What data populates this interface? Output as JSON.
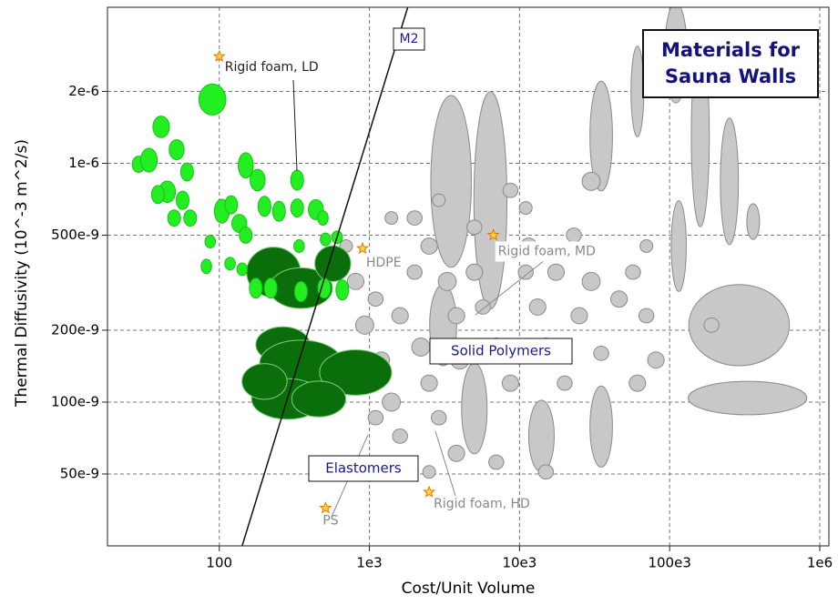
{
  "chart_data": {
    "type": "bubble",
    "title_lines": [
      "Materials for",
      "Sauna Walls"
    ],
    "xlabel": "Cost/Unit Volume",
    "ylabel": "Thermal Diffusivity (10^-3 m^2/s)",
    "xscale": "log",
    "yscale": "log",
    "grid": true,
    "xlim": [
      18,
      1150000
    ],
    "ylim": [
      2.5e-08,
      4.5e-06
    ],
    "xticks": [
      100,
      {
        "value": 1000,
        "label": "1e3"
      },
      {
        "value": 10000,
        "label": "10e3"
      },
      {
        "value": 100000,
        "label": "100e3"
      },
      {
        "value": 1000000,
        "label": "1e6"
      }
    ],
    "yticks": [
      {
        "value": 2e-06,
        "label": "2e-6"
      },
      {
        "value": 1e-06,
        "label": "1e-6"
      },
      {
        "value": 5e-07,
        "label": "500e-9"
      },
      {
        "value": 2e-07,
        "label": "200e-9"
      },
      {
        "value": 1e-07,
        "label": "100e-9"
      },
      {
        "value": 5e-08,
        "label": "50e-9"
      }
    ],
    "series": [
      {
        "color": "#c8c8c8",
        "x": [
          3500,
          6400,
          35000,
          110000,
          160000,
          250000,
          290000,
          330000,
          115000,
          360000,
          61000,
          35000,
          14000,
          5000,
          3100,
          810,
          1100,
          930,
          1200,
          1400,
          1100,
          1600,
          2000,
          2200,
          2500,
          2900,
          2000,
          2500,
          3300,
          3800,
          4000,
          5000,
          5700,
          7000,
          8700,
          11000,
          13200,
          15000,
          17500,
          20000,
          25000,
          30000,
          35000,
          46000,
          57000,
          61000,
          70000,
          81000,
          1400,
          2900,
          8700,
          11000,
          30000,
          70000,
          1600,
          3800,
          7000,
          15000,
          700,
          2500,
          11500,
          5000,
          23000,
          1100,
          190000
        ],
        "values": [
          8.4e-07,
          7e-07,
          1.3e-06,
          2.9e-06,
          1.3e-06,
          8.4e-07,
          2.1e-07,
          1.04e-07,
          4.5e-07,
          5.7e-07,
          2e-06,
          7.9e-08,
          7.2e-08,
          9.4e-08,
          2.1e-07,
          3.2e-07,
          2.7e-07,
          2.1e-07,
          1.5e-07,
          1e-07,
          8.6e-08,
          2.3e-07,
          3.5e-07,
          1.7e-07,
          1.2e-07,
          8.6e-08,
          5.9e-07,
          4.5e-07,
          3.2e-07,
          2.3e-07,
          1.5e-07,
          3.5e-07,
          2.5e-07,
          1.7e-07,
          1.2e-07,
          3.5e-07,
          2.5e-07,
          1.7e-07,
          3.5e-07,
          1.2e-07,
          2.3e-07,
          3.2e-07,
          1.6e-07,
          2.7e-07,
          3.5e-07,
          1.2e-07,
          2.3e-07,
          1.5e-07,
          5.9e-07,
          7e-07,
          7.7e-07,
          6.5e-07,
          8.4e-07,
          4.5e-07,
          7.2e-08,
          6.1e-08,
          5.6e-08,
          5.1e-08,
          4.5e-07,
          5.1e-08,
          4.5e-07,
          5.4e-07,
          5e-07,
          3.8e-07,
          2.1e-07
        ],
        "x_spans": [
          0.27,
          0.22,
          0.15,
          0.15,
          0.12,
          0.12,
          0.67,
          0.79,
          0.1,
          0.085,
          0.085,
          0.15,
          0.17,
          0.17,
          0.18,
          0.11,
          0.1,
          0.12,
          0.11,
          0.12,
          0.1,
          0.11,
          0.1,
          0.12,
          0.11,
          0.1,
          0.1,
          0.11,
          0.12,
          0.11,
          0.12,
          0.11,
          0.1,
          0.12,
          0.11,
          0.1,
          0.11,
          0.12,
          0.11,
          0.1,
          0.11,
          0.12,
          0.1,
          0.11,
          0.1,
          0.11,
          0.1,
          0.11,
          0.085,
          0.085,
          0.1,
          0.085,
          0.12,
          0.085,
          0.1,
          0.11,
          0.1,
          0.1,
          0.085,
          0.085,
          0.11,
          0.1,
          0.1,
          0.085,
          0.1
        ],
        "y_spans": [
          0.72,
          0.91,
          0.46,
          0.42,
          0.76,
          0.53,
          0.34,
          0.14,
          0.38,
          0.15,
          0.38,
          0.34,
          0.3,
          0.38,
          0.34,
          0.068,
          0.06,
          0.076,
          0.068,
          0.076,
          0.06,
          0.068,
          0.06,
          0.076,
          0.068,
          0.06,
          0.06,
          0.068,
          0.076,
          0.068,
          0.076,
          0.068,
          0.06,
          0.076,
          0.068,
          0.06,
          0.068,
          0.076,
          0.068,
          0.06,
          0.068,
          0.076,
          0.06,
          0.068,
          0.06,
          0.068,
          0.06,
          0.068,
          0.053,
          0.053,
          0.06,
          0.053,
          0.076,
          0.053,
          0.06,
          0.068,
          0.06,
          0.06,
          0.053,
          0.053,
          0.068,
          0.06,
          0.06,
          0.053,
          0.06
        ]
      },
      {
        "color": "#0a6e0a",
        "x": [
          230,
          350,
          570,
          265,
          350,
          810,
          285,
          460,
          200
        ],
        "values": [
          3.5e-07,
          3e-07,
          3.8e-07,
          1.74e-07,
          1.46e-07,
          1.33e-07,
          1.03e-07,
          1.03e-07,
          1.22e-07
        ],
        "x_spans": [
          0.36,
          0.42,
          0.24,
          0.36,
          0.55,
          0.48,
          0.48,
          0.36,
          0.3
        ],
        "y_spans": [
          0.21,
          0.17,
          0.15,
          0.15,
          0.19,
          0.19,
          0.17,
          0.15,
          0.15
        ]
      },
      {
        "color": "#22ee22",
        "x": [
          90,
          29,
          34,
          41,
          52,
          61,
          45,
          57,
          39,
          64,
          50,
          150,
          180,
          104,
          120,
          136,
          150,
          200,
          250,
          330,
          330,
          440,
          490,
          87,
          82,
          142,
          340,
          510,
          610,
          118,
          175,
          220,
          350,
          500,
          660
        ],
        "values": [
          1.85e-06,
          9.9e-07,
          1.03e-06,
          1.42e-06,
          1.14e-06,
          9.2e-07,
          7.6e-07,
          7e-07,
          7.4e-07,
          5.9e-07,
          5.9e-07,
          9.8e-07,
          8.5e-07,
          6.3e-07,
          6.7e-07,
          5.6e-07,
          5e-07,
          6.6e-07,
          6.3e-07,
          8.5e-07,
          6.5e-07,
          6.4e-07,
          5.9e-07,
          4.7e-07,
          3.7e-07,
          3.6e-07,
          4.5e-07,
          4.8e-07,
          4.9e-07,
          3.8e-07,
          3e-07,
          3e-07,
          2.9e-07,
          3e-07,
          2.95e-07
        ],
        "x_spans": [
          0.18,
          0.085,
          0.11,
          0.11,
          0.1,
          0.085,
          0.11,
          0.085,
          0.085,
          0.085,
          0.085,
          0.1,
          0.1,
          0.1,
          0.085,
          0.1,
          0.085,
          0.085,
          0.085,
          0.085,
          0.085,
          0.1,
          0.07,
          0.07,
          0.07,
          0.07,
          0.07,
          0.07,
          0.07,
          0.07,
          0.085,
          0.085,
          0.085,
          0.085,
          0.085
        ],
        "y_spans": [
          0.13,
          0.068,
          0.1,
          0.09,
          0.084,
          0.076,
          0.09,
          0.076,
          0.076,
          0.068,
          0.068,
          0.106,
          0.09,
          0.1,
          0.076,
          0.076,
          0.068,
          0.084,
          0.084,
          0.084,
          0.076,
          0.084,
          0.06,
          0.053,
          0.06,
          0.053,
          0.053,
          0.053,
          0.053,
          0.053,
          0.084,
          0.084,
          0.084,
          0.084,
          0.084
        ]
      }
    ],
    "guideline": {
      "label": "M2",
      "points": [
        [
          142,
          2.5e-08
        ],
        [
          1800,
          4.5e-06
        ]
      ]
    },
    "annotations": [
      {
        "text": "Rigid foam, LD",
        "x": 100,
        "y": 2.8e-06
      },
      {
        "text": "HDPE",
        "x": 900,
        "y": 4.4e-07
      },
      {
        "text": "Rigid foam, MD",
        "x": 6700,
        "y": 5e-07
      },
      {
        "text": "PS",
        "x": 510,
        "y": 3.6e-08
      },
      {
        "text": "Rigid foam, HD",
        "x": 2500,
        "y": 4.2e-08
      }
    ],
    "region_labels": [
      "Solid Polymers",
      "Elastomers"
    ]
  }
}
